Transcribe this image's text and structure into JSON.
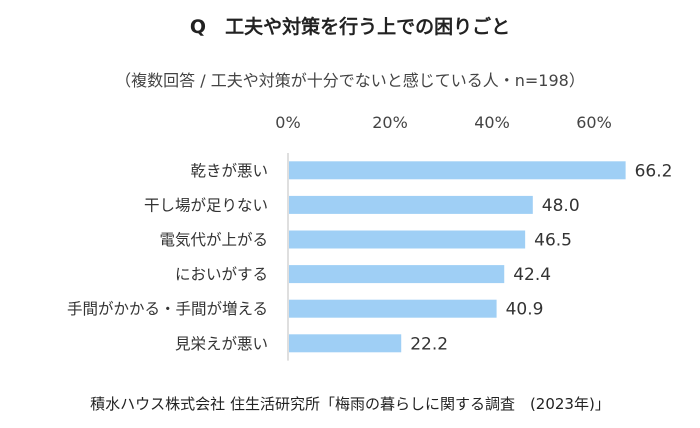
{
  "title": "Q　工夫や対策を行う上での困りごと",
  "subtitle": "（複数回答 / 工夫や対策が十分でないと感じている人・n=198）",
  "source": "積水ハウス株式会社 住生活研究所「梅雨の暮らしに関する調査　(2023年)」",
  "chart_data": {
    "type": "bar",
    "orientation": "horizontal",
    "categories": [
      "乾きが悪い",
      "干し場が足りない",
      "電気代が上がる",
      "においがする",
      "手間がかかる・手間が増える",
      "見栄えが悪い"
    ],
    "values": [
      66.2,
      48.0,
      46.5,
      42.4,
      40.9,
      22.2
    ],
    "value_labels": [
      "66.2",
      "48.0",
      "46.5",
      "42.4",
      "40.9",
      "22.2"
    ],
    "xlim": [
      0,
      60
    ],
    "x_ticks": [
      0,
      20,
      40,
      60
    ],
    "x_tick_labels": [
      "0%",
      "20%",
      "40%",
      "60%"
    ],
    "axis_position": "top",
    "bar_color": "#9fcff5",
    "grid": false
  }
}
